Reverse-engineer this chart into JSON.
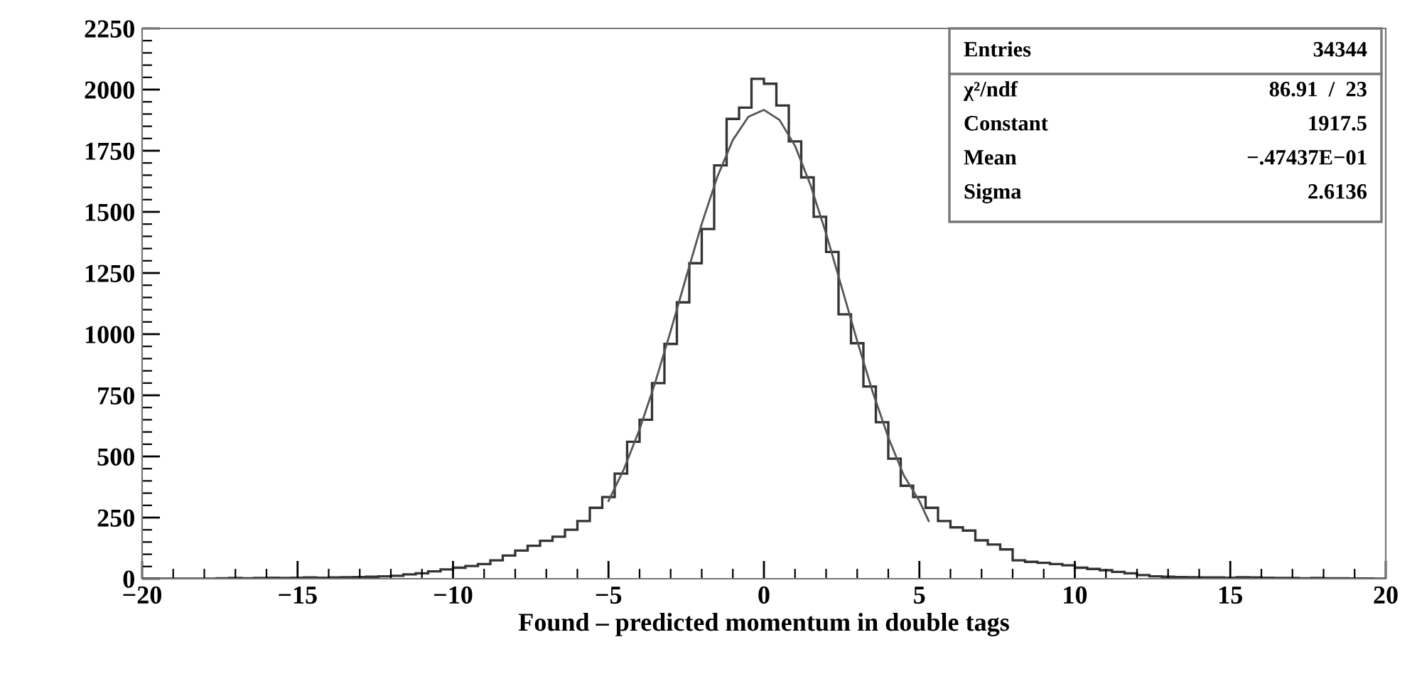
{
  "chart_data": {
    "type": "histogram",
    "xlabel": "Found – predicted momentum in double tags",
    "bins": [
      -20,
      -19.6,
      -19.2,
      -18.8,
      -18.4,
      -18,
      -17.6,
      -17.2,
      -16.8,
      -16.4,
      -16,
      -15.6,
      -15.2,
      -14.8,
      -14.4,
      -14,
      -13.6,
      -13.2,
      -12.8,
      -12.4,
      -12,
      -11.6,
      -11.2,
      -10.8,
      -10.4,
      -10,
      -9.6,
      -9.2,
      -8.8,
      -8.4,
      -8,
      -7.6,
      -7.2,
      -6.8,
      -6.4,
      -6,
      -5.6,
      -5.2,
      -4.8,
      -4.4,
      -4,
      -3.6,
      -3.2,
      -2.8,
      -2.4,
      -2,
      -1.6,
      -1.2,
      -0.8,
      -0.4,
      0,
      0.4,
      0.8,
      1.2,
      1.6,
      2,
      2.4,
      2.8,
      3.2,
      3.6,
      4,
      4.4,
      4.8,
      5.2,
      5.6,
      6,
      6.4,
      6.8,
      7.2,
      7.6,
      8,
      8.4,
      8.8,
      9.2,
      9.6,
      10,
      10.4,
      10.8,
      11.2,
      11.6,
      12,
      12.4,
      12.8,
      13.2,
      13.6,
      14,
      14.4,
      14.8,
      15.2,
      15.6,
      16,
      16.4,
      16.8,
      17.2,
      17.6,
      18,
      18.4,
      18.8,
      19.2,
      19.6,
      20
    ],
    "values": [
      0,
      0,
      0,
      0,
      0,
      0,
      2,
      3,
      2,
      3,
      4,
      3,
      4,
      5,
      4,
      5,
      6,
      7,
      8,
      10,
      12,
      18,
      22,
      30,
      38,
      45,
      52,
      60,
      75,
      95,
      115,
      135,
      155,
      172,
      200,
      236,
      290,
      334,
      430,
      560,
      650,
      800,
      960,
      1130,
      1290,
      1430,
      1690,
      1880,
      1926,
      2044,
      2024,
      1935,
      1788,
      1641,
      1480,
      1336,
      1081,
      963,
      786,
      640,
      491,
      380,
      334,
      290,
      236,
      210,
      197,
      157,
      140,
      120,
      75,
      69,
      65,
      60,
      55,
      45,
      40,
      35,
      28,
      22,
      15,
      10,
      8,
      7,
      6,
      5,
      5,
      4,
      6,
      5,
      4,
      3,
      3,
      2,
      3,
      2,
      2,
      1,
      1,
      0
    ],
    "color": "#333333",
    "series": [
      {
        "type": "line",
        "color": "#555555",
        "x": [
          -5,
          -4.5,
          -4,
          -3.5,
          -3,
          -2.5,
          -2,
          -1.5,
          -1,
          -0.5,
          0,
          0.5,
          1,
          1.5,
          2,
          2.5,
          3,
          3.5,
          4,
          4.5,
          5,
          5.3
        ],
        "values": [
          318,
          449,
          611,
          801,
          1013,
          1234,
          1451,
          1643,
          1794,
          1889,
          1917,
          1876,
          1770,
          1609,
          1411,
          1192,
          972,
          763,
          578,
          422,
          318,
          236
        ]
      }
    ],
    "xlim": [
      -20,
      20
    ],
    "ylim": [
      0,
      2250
    ],
    "xticks": [
      -20,
      {
        "value": -19,
        "label": null
      },
      {
        "value": -18,
        "label": null
      },
      {
        "value": -17,
        "label": null
      },
      {
        "value": -16,
        "label": null
      },
      -15,
      {
        "value": -14,
        "label": null
      },
      {
        "value": -13,
        "label": null
      },
      {
        "value": -12,
        "label": null
      },
      {
        "value": -11,
        "label": null
      },
      -10,
      {
        "value": -9,
        "label": null
      },
      {
        "value": -8,
        "label": null
      },
      {
        "value": -7,
        "label": null
      },
      {
        "value": -6,
        "label": null
      },
      -5,
      {
        "value": -4,
        "label": null
      },
      {
        "value": -3,
        "label": null
      },
      {
        "value": -2,
        "label": null
      },
      {
        "value": -1,
        "label": null
      },
      0,
      {
        "value": 1,
        "label": null
      },
      {
        "value": 2,
        "label": null
      },
      {
        "value": 3,
        "label": null
      },
      {
        "value": 4,
        "label": null
      },
      5,
      {
        "value": 6,
        "label": null
      },
      {
        "value": 7,
        "label": null
      },
      {
        "value": 8,
        "label": null
      },
      {
        "value": 9,
        "label": null
      },
      10,
      {
        "value": 11,
        "label": null
      },
      {
        "value": 12,
        "label": null
      },
      {
        "value": 13,
        "label": null
      },
      {
        "value": 14,
        "label": null
      },
      15,
      {
        "value": 16,
        "label": null
      },
      {
        "value": 17,
        "label": null
      },
      {
        "value": 18,
        "label": null
      },
      {
        "value": 19,
        "label": null
      },
      20
    ],
    "yticks": [
      0,
      {
        "value": 50,
        "label": null
      },
      {
        "value": 100,
        "label": null
      },
      {
        "value": 150,
        "label": null
      },
      {
        "value": 200,
        "label": null
      },
      250,
      {
        "value": 300,
        "label": null
      },
      {
        "value": 350,
        "label": null
      },
      {
        "value": 400,
        "label": null
      },
      {
        "value": 450,
        "label": null
      },
      500,
      {
        "value": 550,
        "label": null
      },
      {
        "value": 600,
        "label": null
      },
      {
        "value": 650,
        "label": null
      },
      {
        "value": 700,
        "label": null
      },
      750,
      {
        "value": 800,
        "label": null
      },
      {
        "value": 850,
        "label": null
      },
      {
        "value": 900,
        "label": null
      },
      {
        "value": 950,
        "label": null
      },
      1000,
      {
        "value": 1050,
        "label": null
      },
      {
        "value": 1100,
        "label": null
      },
      {
        "value": 1150,
        "label": null
      },
      {
        "value": 1200,
        "label": null
      },
      1250,
      {
        "value": 1300,
        "label": null
      },
      {
        "value": 1350,
        "label": null
      },
      {
        "value": 1400,
        "label": null
      },
      {
        "value": 1450,
        "label": null
      },
      1500,
      {
        "value": 1550,
        "label": null
      },
      {
        "value": 1600,
        "label": null
      },
      {
        "value": 1650,
        "label": null
      },
      {
        "value": 1700,
        "label": null
      },
      1750,
      {
        "value": 1800,
        "label": null
      },
      {
        "value": 1850,
        "label": null
      },
      {
        "value": 1900,
        "label": null
      },
      {
        "value": 1950,
        "label": null
      },
      2000,
      {
        "value": 2050,
        "label": null
      },
      {
        "value": 2100,
        "label": null
      },
      {
        "value": 2150,
        "label": null
      },
      {
        "value": 2200,
        "label": null
      },
      2250
    ],
    "annotations": [
      "Entries",
      "34344",
      "χ²/ndf",
      "86.91  /  23",
      "Constant",
      "1917.5",
      "Mean",
      "−.47437E−01",
      "Sigma",
      "2.6136"
    ],
    "grid": false
  }
}
